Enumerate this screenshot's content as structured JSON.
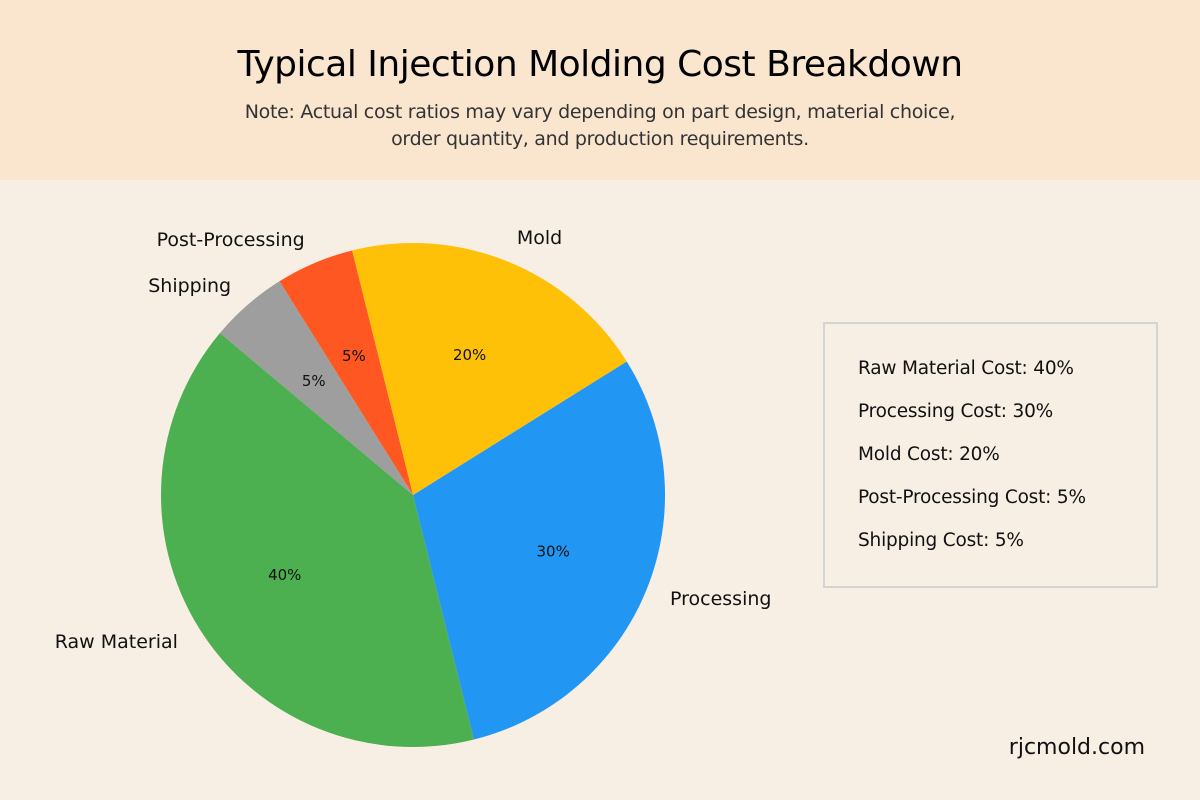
{
  "header": {
    "title": "Typical Injection Molding Cost Breakdown",
    "subtitle": "Note: Actual cost ratios may vary depending on part design, material choice, order quantity, and production requirements."
  },
  "chart_data": {
    "type": "pie",
    "title": "Typical Injection Molding Cost Breakdown",
    "start_angle_deg": 140,
    "direction": "counterclockwise",
    "slices": [
      {
        "label": "Raw Material",
        "value": 40,
        "pct_label": "40%",
        "color": "#4caf50"
      },
      {
        "label": "Processing",
        "value": 30,
        "pct_label": "30%",
        "color": "#2196f3"
      },
      {
        "label": "Mold",
        "value": 20,
        "pct_label": "20%",
        "color": "#ffc107"
      },
      {
        "label": "Post-Processing",
        "value": 5,
        "pct_label": "5%",
        "color": "#ff5722"
      },
      {
        "label": "Shipping",
        "value": 5,
        "pct_label": "5%",
        "color": "#9e9e9e"
      }
    ]
  },
  "legend": {
    "items": [
      "Raw Material Cost: 40%",
      "Processing Cost: 30%",
      "Mold Cost: 20%",
      "Post-Processing Cost: 5%",
      "Shipping Cost: 5%"
    ]
  },
  "footer": {
    "site": "rjcmold.com"
  }
}
